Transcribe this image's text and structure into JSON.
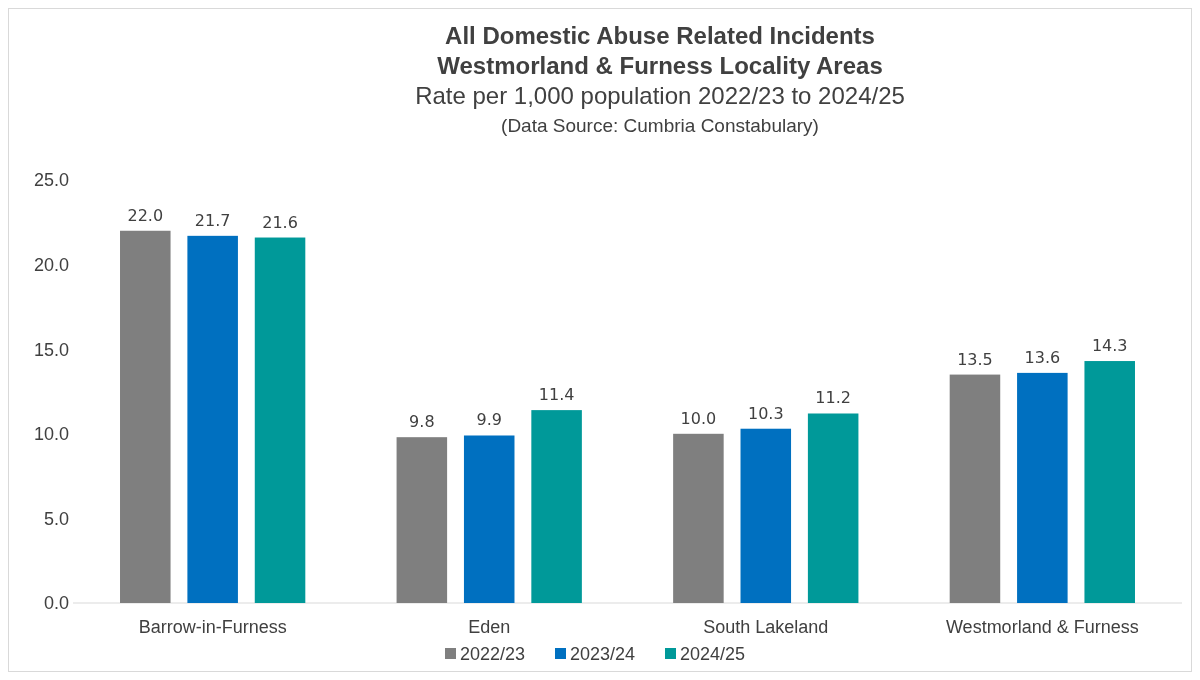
{
  "chart_data": {
    "type": "bar",
    "title": "All Domestic Abuse Related Incidents\nWestmorland & Furness Locality Areas",
    "subtitle": "Rate per 1,000 population 2022/23 to 2024/25",
    "annotations": [
      "(Data Source: Cumbria Constabulary)"
    ],
    "categories": [
      "Barrow-in-Furness",
      "Eden",
      "South Lakeland",
      "Westmorland & Furness"
    ],
    "series": [
      {
        "name": "2022/23",
        "color": "#7f7f7f",
        "values": [
          22.0,
          9.8,
          10.0,
          13.5
        ],
        "value_labels": [
          "22.0",
          "9.8",
          "10.0",
          "13.5"
        ]
      },
      {
        "name": "2023/24",
        "color": "#0070c0",
        "values": [
          21.7,
          9.9,
          10.3,
          13.6
        ],
        "value_labels": [
          "21.7",
          "9.9",
          "10.3",
          "13.6"
        ]
      },
      {
        "name": "2024/25",
        "color": "#009999",
        "values": [
          21.6,
          11.4,
          11.2,
          14.3
        ],
        "value_labels": [
          "21.6",
          "11.4",
          "11.2",
          "14.3"
        ]
      }
    ],
    "ylim": [
      0,
      25
    ],
    "yticks": [
      {
        "value": 0,
        "label": "0.0"
      },
      {
        "value": 5,
        "label": "5.0"
      },
      {
        "value": 10,
        "label": "10.0"
      },
      {
        "value": 15,
        "label": "15.0"
      },
      {
        "value": 20,
        "label": "20.0"
      },
      {
        "value": 25,
        "label": "25.0"
      }
    ],
    "grid": false,
    "legend": "bottom"
  }
}
